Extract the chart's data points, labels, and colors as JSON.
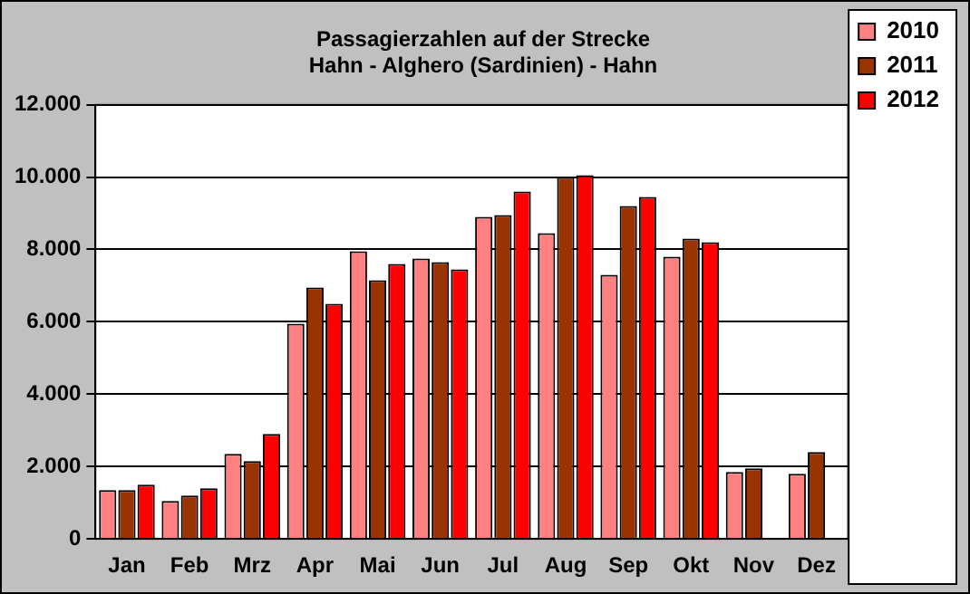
{
  "chart_data": {
    "type": "bar",
    "title": [
      "Passagierzahlen auf der Strecke",
      "Hahn - Alghero (Sardinien) - Hahn"
    ],
    "categories": [
      "Jan",
      "Feb",
      "Mrz",
      "Apr",
      "Mai",
      "Jun",
      "Jul",
      "Aug",
      "Sep",
      "Okt",
      "Nov",
      "Dez"
    ],
    "series": [
      {
        "name": "2010",
        "color": "#ff8080",
        "values": [
          1350,
          1050,
          2350,
          5950,
          7950,
          7750,
          8900,
          8450,
          7300,
          7800,
          1850,
          1800
        ]
      },
      {
        "name": "2011",
        "color": "#993300",
        "values": [
          1350,
          1200,
          2150,
          6950,
          7150,
          7650,
          8950,
          10000,
          9200,
          8300,
          1950,
          2400
        ]
      },
      {
        "name": "2012",
        "color": "#ff0000",
        "values": [
          1500,
          1400,
          2900,
          6500,
          7600,
          7450,
          9600,
          10050,
          9450,
          8200,
          null,
          null
        ]
      }
    ],
    "ylim": [
      0,
      12000
    ],
    "yticks": [
      {
        "value": 0,
        "label": "0"
      },
      {
        "value": 2000,
        "label": "2.000"
      },
      {
        "value": 4000,
        "label": "4.000"
      },
      {
        "value": 6000,
        "label": "6.000"
      },
      {
        "value": 8000,
        "label": "8.000"
      },
      {
        "value": 10000,
        "label": "10.000"
      },
      {
        "value": 12000,
        "label": "12.000"
      }
    ],
    "grid": "y",
    "legend": "top right"
  }
}
